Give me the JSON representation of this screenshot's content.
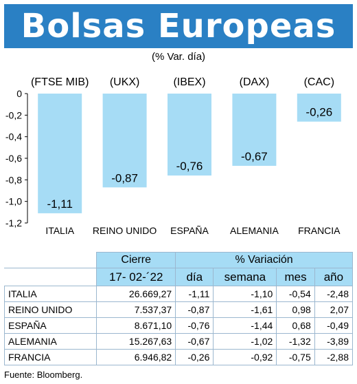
{
  "header": {
    "title": "Bolsas Europeas",
    "subtitle": "(% Var. día)"
  },
  "chart_data": {
    "type": "bar",
    "categories": [
      "ITALIA",
      "REINO UNIDO",
      "ESPAÑA",
      "ALEMANIA",
      "FRANCIA"
    ],
    "index_labels": [
      "(FTSE MIB)",
      "(UKX)",
      "(IBEX)",
      "(DAX)",
      "(CAC)"
    ],
    "values": [
      -1.11,
      -0.87,
      -0.76,
      -0.67,
      -0.26
    ],
    "value_labels": [
      "-1,11",
      "-0,87",
      "-0,76",
      "-0,67",
      "-0,26"
    ],
    "yticks": [
      "0",
      "-0,2",
      "-0,4",
      "-0,6",
      "-0,8",
      "-1,0",
      "-1,2"
    ],
    "ytick_values": [
      0,
      -0.2,
      -0.4,
      -0.6,
      -0.8,
      -1.0,
      -1.2
    ],
    "ylim": [
      -1.2,
      0
    ],
    "bar_color": "#a6dcf5",
    "grid": false
  },
  "table": {
    "head1": {
      "cierre": "Cierre",
      "variacion": "% Variación"
    },
    "head2": {
      "date": "17- 02-´22",
      "dia": "día",
      "semana": "semana",
      "mes": "mes",
      "ano": "año"
    },
    "rows": [
      {
        "name": "ITALIA",
        "cierre": "26.669,27",
        "dia": "-1,11",
        "semana": "-1,10",
        "mes": "-0,54",
        "ano": "-2,48"
      },
      {
        "name": "REINO UNIDO",
        "cierre": "7.537,37",
        "dia": "-0,87",
        "semana": "-1,61",
        "mes": "0,98",
        "ano": "2,07"
      },
      {
        "name": "ESPAÑA",
        "cierre": "8.671,10",
        "dia": "-0,76",
        "semana": "-1,44",
        "mes": "0,68",
        "ano": "-0,49"
      },
      {
        "name": "ALEMANIA",
        "cierre": "15.267,63",
        "dia": "-0,67",
        "semana": "-1,02",
        "mes": "-1,32",
        "ano": "-3,89"
      },
      {
        "name": "FRANCIA",
        "cierre": "6.946,82",
        "dia": "-0,26",
        "semana": "-0,92",
        "mes": "-0,75",
        "ano": "-2,88"
      }
    ]
  },
  "footer": {
    "source": "Fuente: Bloomberg."
  },
  "colors": {
    "banner": "#2a80c4",
    "bar": "#a6dcf5",
    "header_cell": "#a6dcf5"
  }
}
